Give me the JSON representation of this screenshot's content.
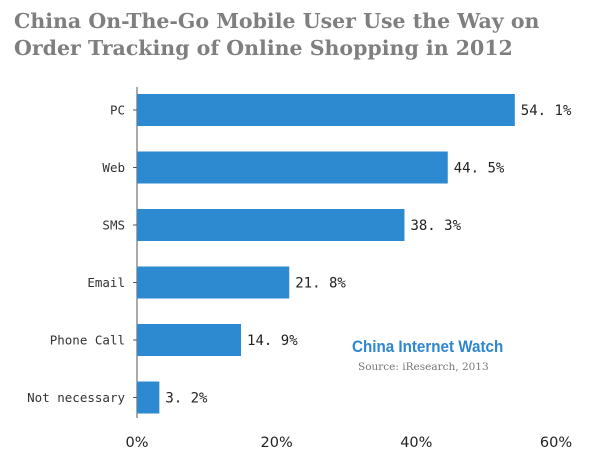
{
  "chart_data": {
    "type": "bar",
    "orientation": "horizontal",
    "title_lines": [
      "China On-The-Go Mobile User Use the Way on",
      "Order Tracking of Online Shopping in 2012"
    ],
    "categories": [
      "PC",
      "Web",
      "SMS",
      "Email",
      "Phone Call",
      "Not necessary"
    ],
    "values": [
      54.1,
      44.5,
      38.3,
      21.8,
      14.9,
      3.2
    ],
    "value_labels": [
      "54. 1%",
      "44. 5%",
      "38. 3%",
      "21. 8%",
      "14. 9%",
      "3. 2%"
    ],
    "xlim": [
      0,
      60
    ],
    "x_ticks": [
      0,
      20,
      40,
      60
    ],
    "x_tick_labels": [
      "0%",
      "20%",
      "40%",
      "60%"
    ],
    "bar_color": "#2e8ad0",
    "grid": false
  },
  "watermark": {
    "brand": "China Internet Watch",
    "source": "Source: iResearch, 2013"
  }
}
